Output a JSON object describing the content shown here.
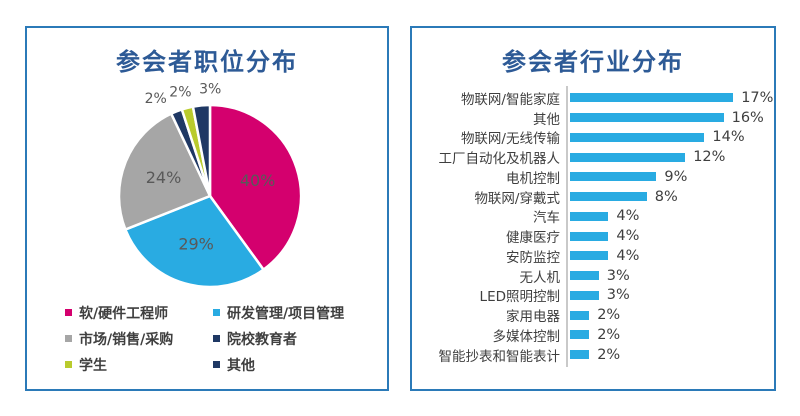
{
  "page": {
    "background": "#ffffff"
  },
  "chart_data": [
    {
      "type": "pie",
      "title": "参会者职位分布",
      "unit": "%",
      "direction": "clockwise",
      "start_angle_deg": 0,
      "data_labels": "percent",
      "legend_position": "bottom",
      "slices": [
        {
          "label": "软/硬件工程师",
          "value": 40,
          "color": "#d4006e"
        },
        {
          "label": "研发管理/项目管理",
          "value": 29,
          "color": "#29abe2"
        },
        {
          "label": "市场/销售/采购",
          "value": 24,
          "color": "#a6a6a6"
        },
        {
          "label": "院校教育者",
          "value": 2,
          "color": "#1f3864"
        },
        {
          "label": "学生",
          "value": 2,
          "color": "#b9cb2d"
        },
        {
          "label": "其他",
          "value": 3,
          "color": "#1f3864"
        }
      ]
    },
    {
      "type": "bar",
      "title": "参会者行业分布",
      "orientation": "horizontal",
      "unit": "%",
      "bar_color": "#29abe2",
      "value_labels": true,
      "grid": false,
      "xlim": [
        0,
        18
      ],
      "categories": [
        "物联网/智能家庭",
        "其他",
        "物联网/无线传输",
        "工厂自动化及机器人",
        "电机控制",
        "物联网/穿戴式",
        "汽车",
        "健康医疗",
        "安防监控",
        "无人机",
        "LED照明控制",
        "家用电器",
        "多媒体控制",
        "智能抄表和智能表计"
      ],
      "values": [
        17,
        16,
        14,
        12,
        9,
        8,
        4,
        4,
        4,
        3,
        3,
        2,
        2,
        2
      ]
    }
  ],
  "colors": {
    "panel_border": "#2b7ab8",
    "title_text": "#2d5a96",
    "data_label_text": "#595959",
    "axis_line": "#c9c9c9",
    "category_text": "#3f3f3f"
  }
}
